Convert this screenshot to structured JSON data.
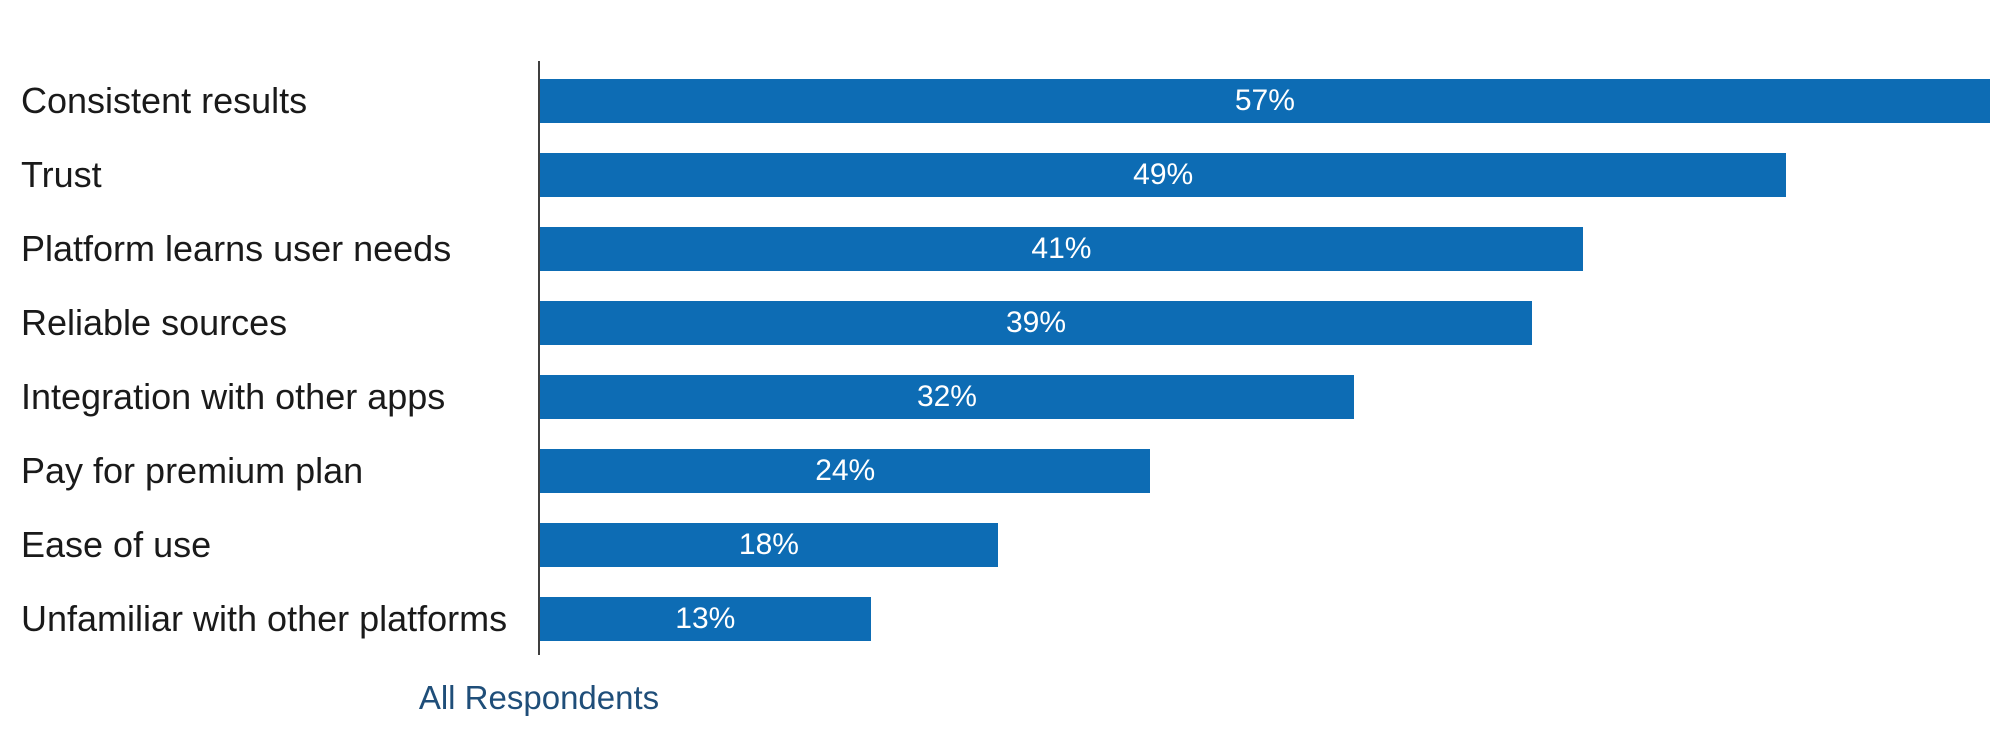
{
  "chart_data": {
    "type": "bar",
    "orientation": "horizontal",
    "title": "",
    "categories": [
      "Consistent results",
      "Trust",
      "Platform learns user needs",
      "Reliable sources",
      "Integration with other apps",
      "Pay for premium plan",
      "Ease of use",
      "Unfamiliar with other platforms"
    ],
    "values": [
      57,
      49,
      41,
      39,
      32,
      24,
      18,
      13
    ],
    "value_suffix": "%",
    "series_label": "All Respondents",
    "xlim": [
      0,
      57.4
    ],
    "grid": false,
    "value_labels_position": "inside-center",
    "legend_position": "bottom-left",
    "colors": {
      "bar": "#0d6cb4",
      "value_label": "#ffffff",
      "category_label": "#1a1a1a",
      "series_label": "#1f4e79",
      "axis_line": "#3f3f3f",
      "background": "#ffffff"
    }
  }
}
